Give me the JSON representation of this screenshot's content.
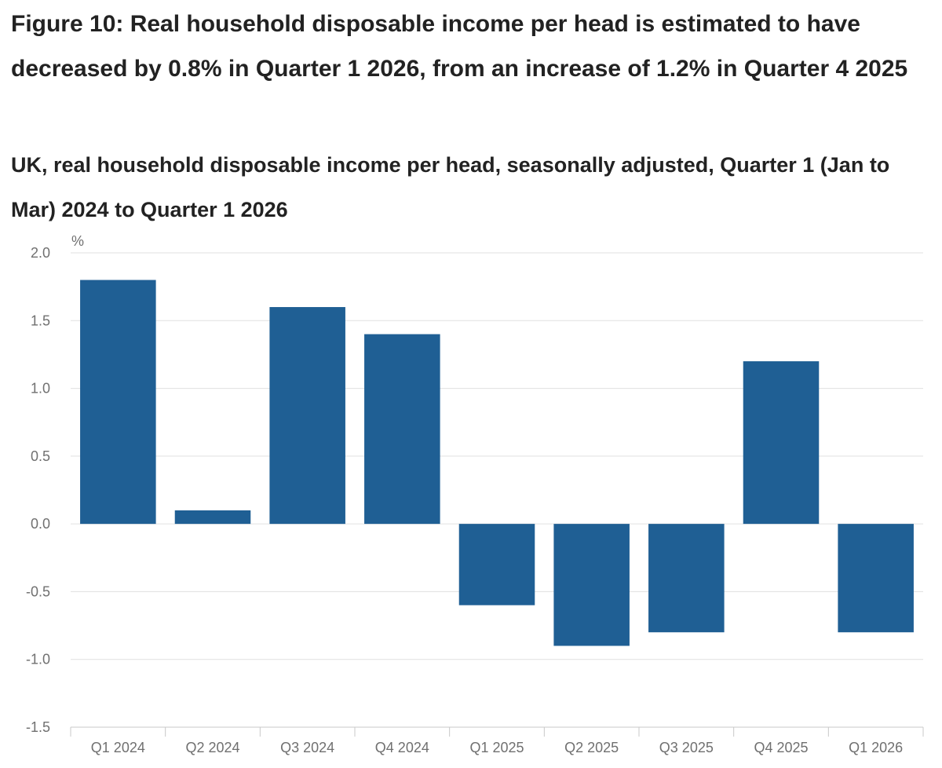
{
  "title": "Figure 10: Real household disposable income per head is estimated to have decreased by 0.8% in Quarter 1 2026, from an increase of 1.2% in Quarter 4 2025",
  "subtitle": "UK, real household disposable income per head, seasonally adjusted, Quarter 1 (Jan to Mar) 2024 to Quarter 1 2026",
  "chart_data": {
    "type": "bar",
    "title": "Figure 10: Real household disposable income per head is estimated to have decreased by 0.8% in Quarter 1 2026, from an increase of 1.2% in Quarter 4 2025",
    "subtitle": "UK, real household disposable income per head, seasonally adjusted, Quarter 1 (Jan to Mar) 2024 to Quarter 1 2026",
    "ylabel": "%",
    "xlabel": "",
    "categories": [
      "Q1 2024",
      "Q2 2024",
      "Q3 2024",
      "Q4 2024",
      "Q1 2025",
      "Q2 2025",
      "Q3 2025",
      "Q4 2025",
      "Q1 2026"
    ],
    "values": [
      1.8,
      0.1,
      1.6,
      1.4,
      -0.6,
      -0.9,
      -0.8,
      1.2,
      -0.8
    ],
    "ylim": [
      -1.5,
      2.0
    ],
    "yticks": [
      "2.0",
      "1.5",
      "1.0",
      "0.5",
      "0.0",
      "-0.5",
      "-1.0",
      "-1.5"
    ],
    "grid": true,
    "bar_color": "#1f5f94",
    "grid_color": "#e0e0e0",
    "axis_color": "#c8c8c8"
  }
}
